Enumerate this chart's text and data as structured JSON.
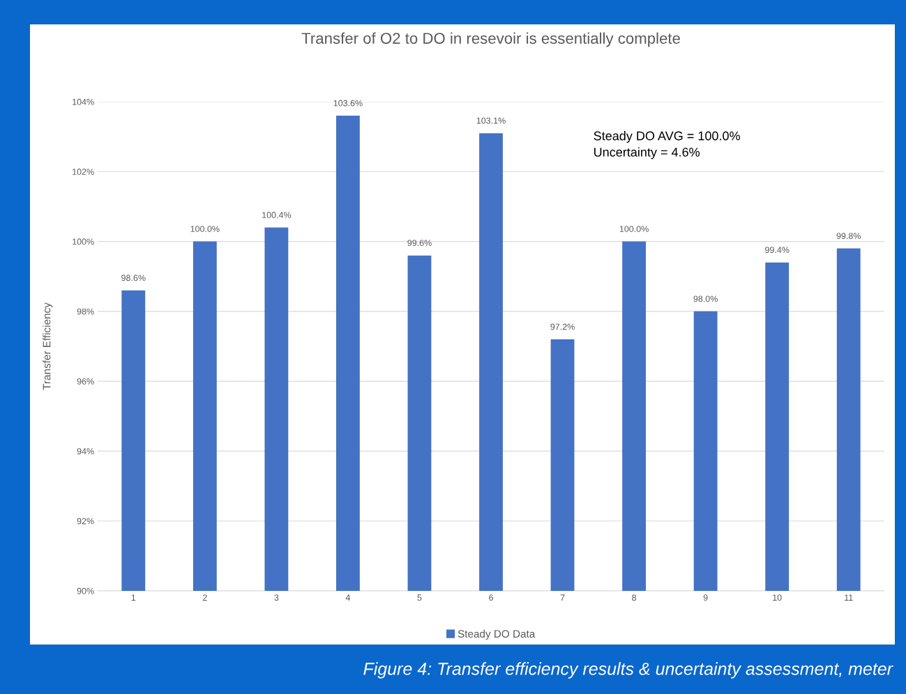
{
  "chart_data": {
    "type": "bar",
    "title": "Transfer of O2 to DO in resevoir is essentially complete",
    "ylabel": "Transfer Efficiency",
    "categories": [
      "1",
      "2",
      "3",
      "4",
      "5",
      "6",
      "7",
      "8",
      "9",
      "10",
      "11"
    ],
    "series": [
      {
        "name": "Steady DO Data",
        "color": "#4472c4",
        "values": [
          98.6,
          100.0,
          100.4,
          103.6,
          99.6,
          103.1,
          97.2,
          100.0,
          98.0,
          99.4,
          99.8
        ],
        "value_labels": [
          "98.6%",
          "100.0%",
          "100.4%",
          "103.6%",
          "99.6%",
          "103.1%",
          "97.2%",
          "100.0%",
          "98.0%",
          "99.4%",
          "99.8%"
        ]
      }
    ],
    "ylim": [
      90,
      104
    ],
    "yticks": [
      {
        "value": 90,
        "label": "90%"
      },
      {
        "value": 92,
        "label": "92%"
      },
      {
        "value": 94,
        "label": "94%"
      },
      {
        "value": 96,
        "label": "96%"
      },
      {
        "value": 98,
        "label": "98%"
      },
      {
        "value": 100,
        "label": "100%"
      },
      {
        "value": 102,
        "label": "102%"
      },
      {
        "value": 104,
        "label": "104%"
      }
    ],
    "grid": "y",
    "legend": "bottom",
    "annotations": [
      "Steady DO AVG = 100.0%\nUncertainty = 4.6%",
      "Figure 4: Transfer efficiency results & uncertainty assessment, meter"
    ]
  }
}
